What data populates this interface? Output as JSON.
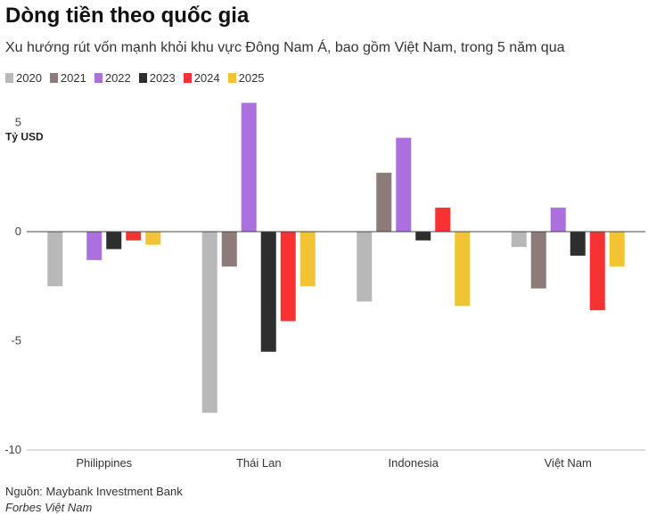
{
  "header": {
    "title": "Dòng tiền theo quốc gia",
    "subtitle": "Xu hướng rút vốn mạnh khỏi khu vực Đông Nam Á, bao gồm Việt Nam, trong 5 năm qua"
  },
  "footer": {
    "source": "Nguồn: Maybank Investment Bank",
    "credit": "Forbes Việt Nam"
  },
  "chart_data": {
    "type": "bar",
    "title": "Dòng tiền theo quốc gia",
    "subtitle": "Xu hướng rút vốn mạnh khỏi khu vực Đông Nam Á, bao gồm Việt Nam, trong 5 năm qua",
    "ylabel": "Tỷ USD",
    "xlabel": "",
    "categories": [
      "Philippines",
      "Thái Lan",
      "Indonesia",
      "Việt Nam"
    ],
    "series": [
      {
        "name": "2020",
        "color": "#b8b8b8",
        "values": [
          -2.5,
          -8.3,
          -3.2,
          -0.7
        ]
      },
      {
        "name": "2021",
        "color": "#8c7b78",
        "values": [
          0.0,
          -1.6,
          2.7,
          -2.6
        ]
      },
      {
        "name": "2022",
        "color": "#ac6fe0",
        "values": [
          -1.3,
          5.9,
          4.3,
          1.1
        ]
      },
      {
        "name": "2023",
        "color": "#2e2e2e",
        "values": [
          -0.8,
          -5.5,
          -0.4,
          -1.1
        ]
      },
      {
        "name": "2024",
        "color": "#f83232",
        "values": [
          -0.4,
          -4.1,
          1.1,
          -3.6
        ]
      },
      {
        "name": "2025",
        "color": "#f2c433",
        "values": [
          -0.6,
          -2.5,
          -3.4,
          -1.6
        ]
      }
    ],
    "ylim": [
      -10,
      6
    ],
    "yticks": [
      5,
      0,
      -5,
      -10
    ],
    "grid": false,
    "legend": "top-left"
  }
}
